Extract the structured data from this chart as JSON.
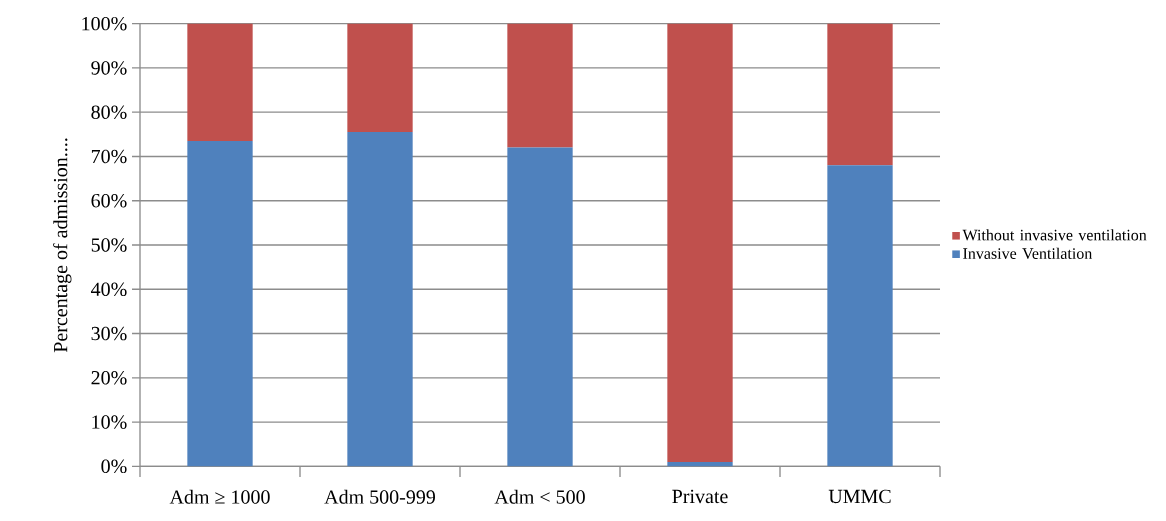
{
  "chart_data": {
    "type": "bar",
    "stacked": true,
    "ylabel": "Percentage of admission....",
    "categories": [
      "Adm ≥ 1000",
      "Adm 500-999",
      "Adm < 500",
      "Private",
      "UMMC"
    ],
    "series": [
      {
        "name": "Invasive Ventilation",
        "color": "#4f81bd",
        "values": [
          73.5,
          75.5,
          72,
          1,
          68
        ]
      },
      {
        "name": "Without invasive ventilation",
        "color": "#c0504d",
        "values": [
          26.5,
          24.5,
          28,
          99,
          32
        ]
      }
    ],
    "ylim": [
      0,
      100
    ],
    "yticks": [
      {
        "value": 0,
        "label": "0%"
      },
      {
        "value": 10,
        "label": "10%"
      },
      {
        "value": 20,
        "label": "20%"
      },
      {
        "value": 30,
        "label": "30%"
      },
      {
        "value": 40,
        "label": "40%"
      },
      {
        "value": 50,
        "label": "50%"
      },
      {
        "value": 60,
        "label": "60%"
      },
      {
        "value": 70,
        "label": "70%"
      },
      {
        "value": 80,
        "label": "80%"
      },
      {
        "value": 90,
        "label": "90%"
      },
      {
        "value": 100,
        "label": "100%"
      }
    ],
    "grid": "y",
    "legend": "right"
  }
}
